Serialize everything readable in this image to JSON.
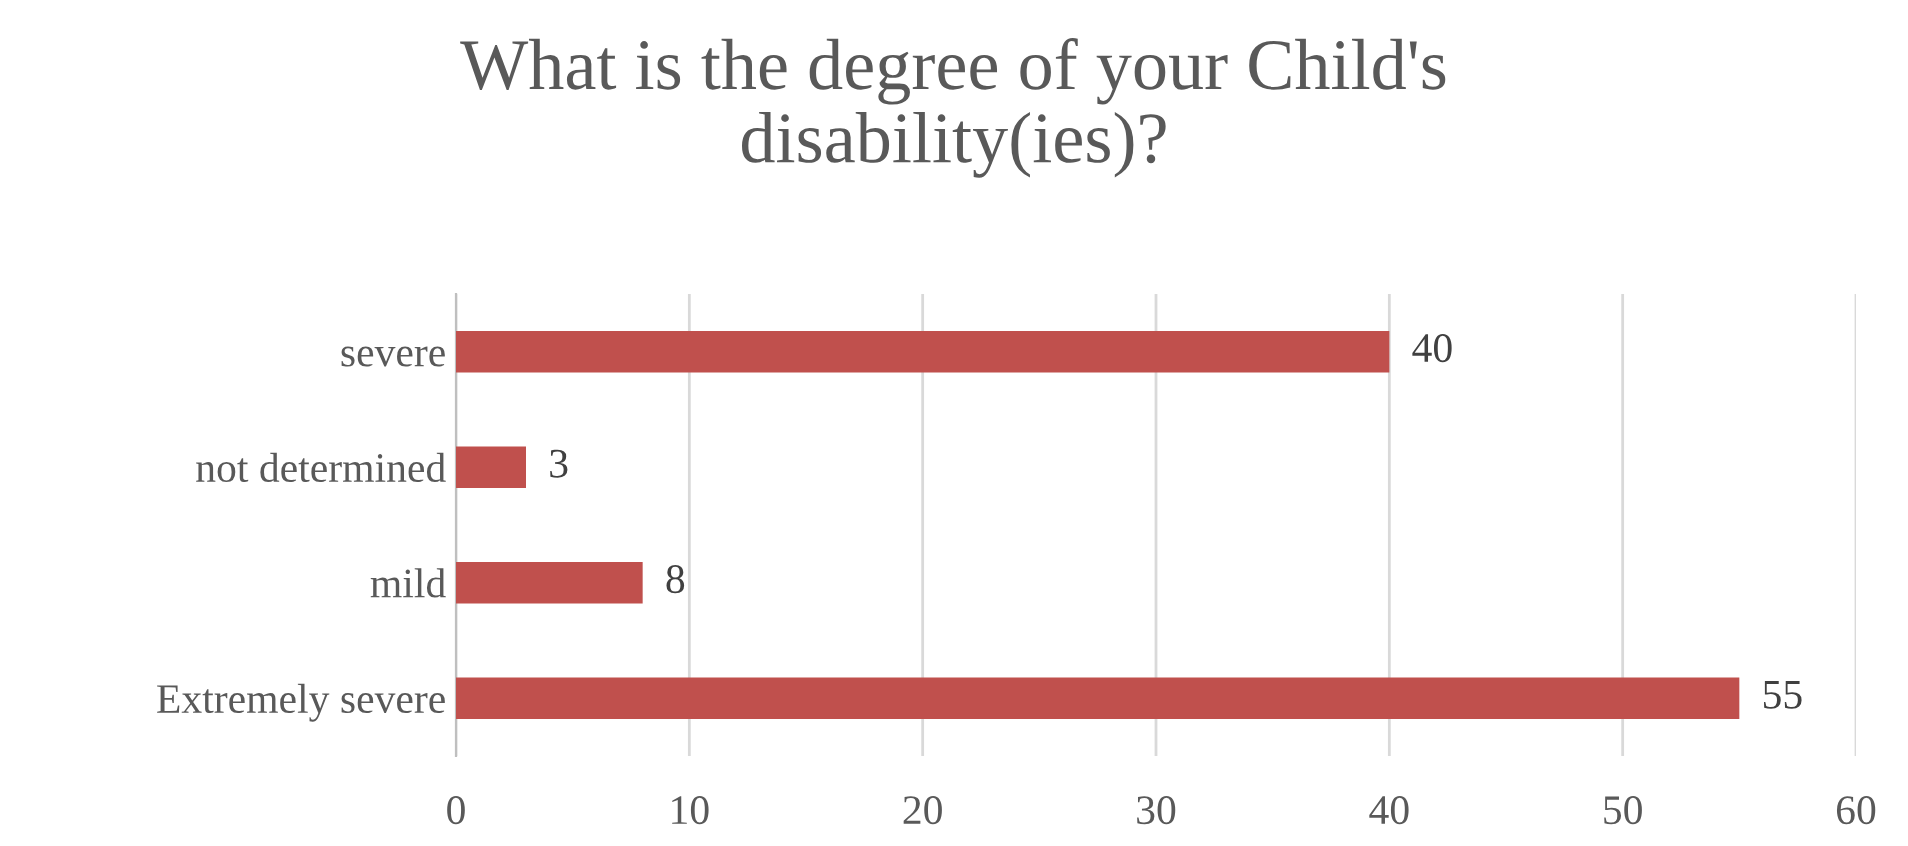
{
  "chart_data": {
    "type": "bar",
    "orientation": "horizontal",
    "title": "What is the degree of your Child's\ndisability(ies)?",
    "categories": [
      "severe",
      "not determined",
      "mild",
      "Extremely severe"
    ],
    "values": [
      40,
      3,
      8,
      55
    ],
    "color": "#c0504d",
    "xlim": [
      0,
      60
    ],
    "xticks": [
      0,
      10,
      20,
      30,
      40,
      50,
      60
    ],
    "grid": "x",
    "data_labels": true
  }
}
